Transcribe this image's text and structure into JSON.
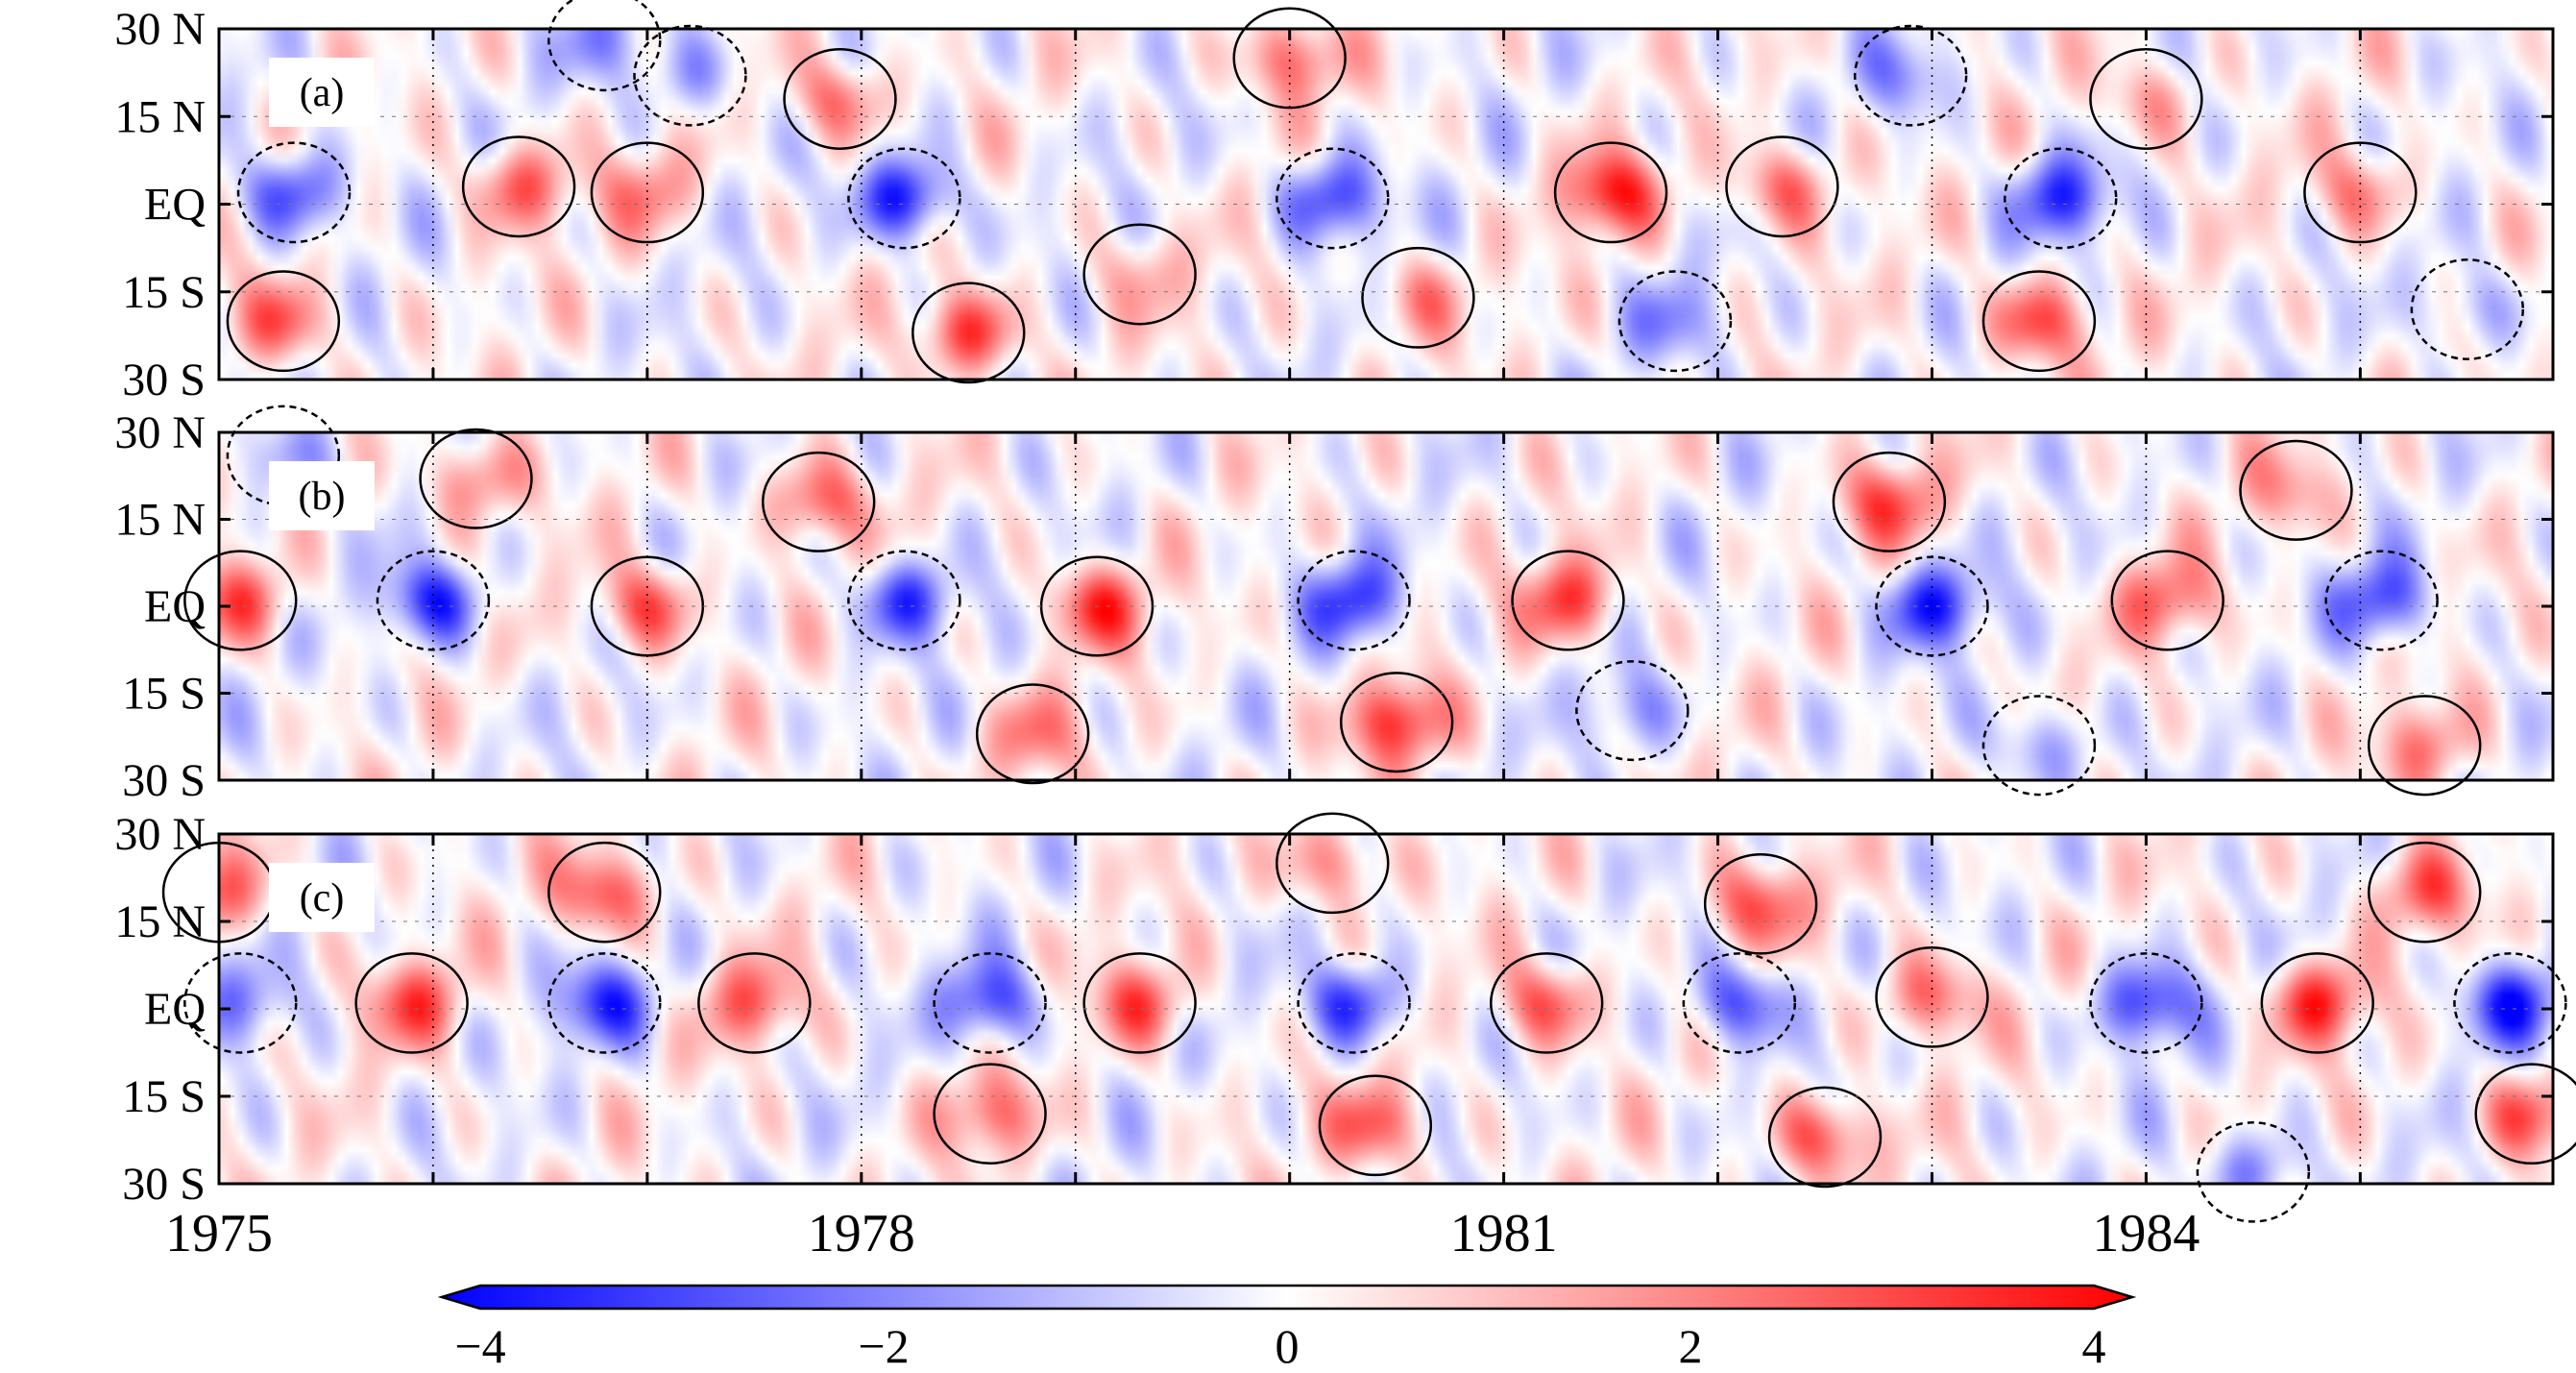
{
  "chart_data": [
    {
      "type": "heatmap",
      "panel_label": "(a)",
      "y_tick_labels": [
        "30 N",
        "15 N",
        "EQ",
        "15 S",
        "30 S"
      ],
      "y_ticks": [
        30,
        15,
        0,
        -15,
        -30
      ],
      "ylim": [
        -30,
        30
      ],
      "xlim": [
        1975.0,
        1985.9
      ],
      "x_tick_labels": [],
      "features": [
        {
          "x": 1975.35,
          "y": 2,
          "v": -3.0
        },
        {
          "x": 1975.3,
          "y": -20,
          "v": 2.5
        },
        {
          "x": 1976.4,
          "y": 3,
          "v": 2.6
        },
        {
          "x": 1976.8,
          "y": 28,
          "v": -1.5
        },
        {
          "x": 1977.0,
          "y": 2,
          "v": 1.8
        },
        {
          "x": 1977.9,
          "y": 18,
          "v": 2.3
        },
        {
          "x": 1977.2,
          "y": 22,
          "v": -1.5
        },
        {
          "x": 1978.2,
          "y": 1,
          "v": -3.8
        },
        {
          "x": 1978.5,
          "y": -22,
          "v": 3.2
        },
        {
          "x": 1979.3,
          "y": -12,
          "v": 1.2
        },
        {
          "x": 1980.0,
          "y": 25,
          "v": 2.6
        },
        {
          "x": 1980.2,
          "y": 1,
          "v": -3.2
        },
        {
          "x": 1980.6,
          "y": -16,
          "v": 1.6
        },
        {
          "x": 1981.5,
          "y": 2,
          "v": 3.4
        },
        {
          "x": 1981.8,
          "y": -20,
          "v": -1.6
        },
        {
          "x": 1982.3,
          "y": 3,
          "v": 2.4
        },
        {
          "x": 1982.9,
          "y": 22,
          "v": -1.7
        },
        {
          "x": 1983.6,
          "y": 1,
          "v": -3.2
        },
        {
          "x": 1983.5,
          "y": -20,
          "v": 3.0
        },
        {
          "x": 1984.0,
          "y": 18,
          "v": 1.6
        },
        {
          "x": 1985.0,
          "y": 2,
          "v": 1.9
        },
        {
          "x": 1985.5,
          "y": -18,
          "v": -1.4
        }
      ]
    },
    {
      "type": "heatmap",
      "panel_label": "(b)",
      "y_tick_labels": [
        "30 N",
        "15 N",
        "EQ",
        "15 S",
        "30 S"
      ],
      "y_ticks": [
        30,
        15,
        0,
        -15,
        -30
      ],
      "ylim": [
        -30,
        30
      ],
      "xlim": [
        1975.0,
        1985.9
      ],
      "x_tick_labels": [],
      "features": [
        {
          "x": 1975.1,
          "y": 1,
          "v": 2.4
        },
        {
          "x": 1975.3,
          "y": 26,
          "v": -1.6
        },
        {
          "x": 1976.2,
          "y": 22,
          "v": 2.2
        },
        {
          "x": 1976.0,
          "y": 1,
          "v": -3.2
        },
        {
          "x": 1977.0,
          "y": 0,
          "v": 2.8
        },
        {
          "x": 1977.8,
          "y": 18,
          "v": 2.6
        },
        {
          "x": 1978.2,
          "y": 1,
          "v": -3.1
        },
        {
          "x": 1978.8,
          "y": -22,
          "v": 1.8
        },
        {
          "x": 1979.1,
          "y": 0,
          "v": 3.0
        },
        {
          "x": 1980.3,
          "y": 1,
          "v": -3.1
        },
        {
          "x": 1980.5,
          "y": -20,
          "v": 3.3
        },
        {
          "x": 1981.3,
          "y": 1,
          "v": 3.0
        },
        {
          "x": 1981.6,
          "y": -18,
          "v": -1.5
        },
        {
          "x": 1982.8,
          "y": 18,
          "v": 2.7
        },
        {
          "x": 1983.0,
          "y": 0,
          "v": -3.4
        },
        {
          "x": 1983.5,
          "y": -24,
          "v": -1.8
        },
        {
          "x": 1984.1,
          "y": 1,
          "v": 2.4
        },
        {
          "x": 1985.1,
          "y": 1,
          "v": -3.0
        },
        {
          "x": 1985.3,
          "y": -24,
          "v": 2.0
        },
        {
          "x": 1984.7,
          "y": 20,
          "v": 1.6
        }
      ]
    },
    {
      "type": "heatmap",
      "panel_label": "(c)",
      "y_tick_labels": [
        "30 N",
        "15 N",
        "EQ",
        "15 S",
        "30 S"
      ],
      "y_ticks": [
        30,
        15,
        0,
        -15,
        -30
      ],
      "ylim": [
        -30,
        30
      ],
      "xlim": [
        1975.0,
        1985.9
      ],
      "x_tick_labels": [
        "1975",
        "1978",
        "1981",
        "1984"
      ],
      "x_ticks": [
        1975,
        1978,
        1981,
        1984
      ],
      "features": [
        {
          "x": 1975.0,
          "y": 20,
          "v": 2.2
        },
        {
          "x": 1975.1,
          "y": 1,
          "v": -1.8
        },
        {
          "x": 1975.9,
          "y": 1,
          "v": 2.6
        },
        {
          "x": 1976.8,
          "y": 20,
          "v": 3.0
        },
        {
          "x": 1976.8,
          "y": 1,
          "v": -3.1
        },
        {
          "x": 1977.5,
          "y": 1,
          "v": 2.4
        },
        {
          "x": 1978.6,
          "y": 1,
          "v": -3.1
        },
        {
          "x": 1978.6,
          "y": -18,
          "v": 2.3
        },
        {
          "x": 1979.3,
          "y": 1,
          "v": 2.6
        },
        {
          "x": 1980.2,
          "y": 25,
          "v": 2.2
        },
        {
          "x": 1980.3,
          "y": 1,
          "v": -3.1
        },
        {
          "x": 1980.4,
          "y": -20,
          "v": 2.6
        },
        {
          "x": 1981.2,
          "y": 1,
          "v": 2.8
        },
        {
          "x": 1982.1,
          "y": 1,
          "v": -3.0
        },
        {
          "x": 1982.2,
          "y": 18,
          "v": 2.6
        },
        {
          "x": 1982.5,
          "y": -22,
          "v": 2.8
        },
        {
          "x": 1983.0,
          "y": 2,
          "v": 2.6
        },
        {
          "x": 1984.0,
          "y": 1,
          "v": -3.2
        },
        {
          "x": 1984.8,
          "y": 1,
          "v": 3.2
        },
        {
          "x": 1985.3,
          "y": 20,
          "v": 2.4
        },
        {
          "x": 1985.7,
          "y": 1,
          "v": -3.3
        },
        {
          "x": 1985.8,
          "y": -18,
          "v": 2.6
        },
        {
          "x": 1984.5,
          "y": -28,
          "v": -2.0
        }
      ]
    }
  ],
  "colorbar": {
    "min": -4,
    "max": 4,
    "tick_values": [
      -4,
      -2,
      0,
      2,
      4
    ],
    "tick_labels": [
      "−4",
      "−2",
      "0",
      "2",
      "4"
    ],
    "colors": {
      "low": "#0000ff",
      "mid": "#ffffff",
      "high": "#ff0000"
    }
  }
}
